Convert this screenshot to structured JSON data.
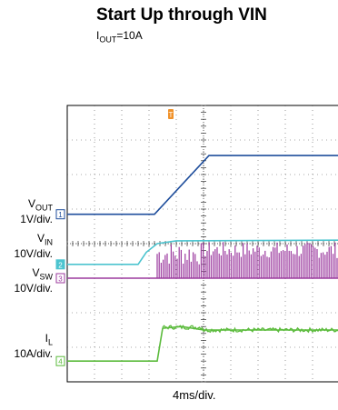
{
  "chart_data": {
    "type": "line",
    "title": "Start Up through VIN",
    "subtitle": {
      "main": "I",
      "sub": "OUT",
      "rest": "=10A"
    },
    "xlabel": "4ms/div.",
    "x_divisions": 10,
    "y_divisions": 8,
    "trigger_marker": "T",
    "series": [
      {
        "name_main": "V",
        "name_sub": "OUT",
        "scale": "1V/div.",
        "channel": "1",
        "color": "#1f4e9c",
        "points": [
          [
            0,
            4.85
          ],
          [
            3.2,
            4.85
          ],
          [
            5.2,
            6.55
          ],
          [
            10,
            6.55
          ]
        ]
      },
      {
        "name_main": "V",
        "name_sub": "IN",
        "scale": "10V/div.",
        "channel": "2",
        "color": "#4cc4cf",
        "points": [
          [
            0,
            3.4
          ],
          [
            2.6,
            3.4
          ],
          [
            2.9,
            3.75
          ],
          [
            3.3,
            4.0
          ],
          [
            4.0,
            4.08
          ],
          [
            10,
            4.1
          ]
        ]
      },
      {
        "name_main": "V",
        "name_sub": "SW",
        "scale": "10V/div.",
        "channel": "3",
        "color": "#9b3a9e",
        "points": [
          [
            0,
            3.0
          ],
          [
            3.3,
            3.0
          ],
          [
            10,
            3.0
          ]
        ]
      },
      {
        "name_main": "I",
        "name_sub": "L",
        "scale": "10A/div.",
        "channel": "4",
        "color": "#5bbb3c",
        "points": [
          [
            0,
            0.6
          ],
          [
            3.3,
            0.6
          ],
          [
            3.5,
            1.55
          ],
          [
            4.2,
            1.6
          ],
          [
            5.0,
            1.5
          ],
          [
            10,
            1.5
          ]
        ]
      }
    ]
  }
}
